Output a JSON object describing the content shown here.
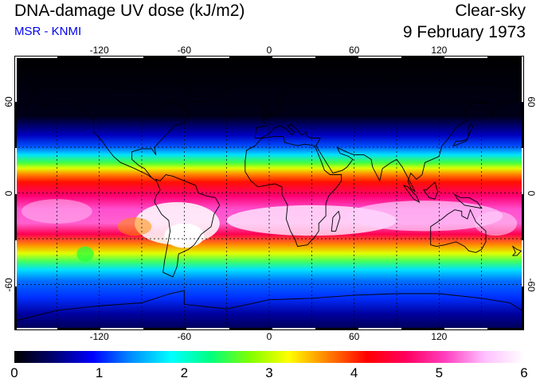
{
  "header": {
    "title": "DNA-damage UV dose (kJ/m2)",
    "credit": "MSR - KNMI",
    "condition": "Clear-sky",
    "date": "9 February 1973"
  },
  "map": {
    "projection": "equirectangular",
    "lon_range": [
      -180,
      180
    ],
    "lat_range": [
      -90,
      90
    ],
    "lon_ticks": [
      {
        "value": -120,
        "label": "-120"
      },
      {
        "value": -60,
        "label": "-60"
      },
      {
        "value": 0,
        "label": "0"
      },
      {
        "value": 60,
        "label": "60"
      },
      {
        "value": 120,
        "label": "120"
      }
    ],
    "lat_ticks": [
      {
        "value": 60,
        "label": "60"
      },
      {
        "value": 0,
        "label": "0"
      },
      {
        "value": -60,
        "label": "-60"
      }
    ],
    "grid": "dotted",
    "grid_lon_step": 30,
    "grid_lat_step": 30
  },
  "colorbar": {
    "min": 0,
    "max": 6,
    "labels": [
      "0",
      "1",
      "2",
      "3",
      "4",
      "5",
      "6"
    ],
    "colors": [
      "#000000",
      "#000070",
      "#0000ff",
      "#0090ff",
      "#00ffff",
      "#00ff80",
      "#80ff00",
      "#ffff00",
      "#ff8000",
      "#ff0000",
      "#ff0060",
      "#ff40c0",
      "#ffc0ff",
      "#ffffff"
    ]
  }
}
